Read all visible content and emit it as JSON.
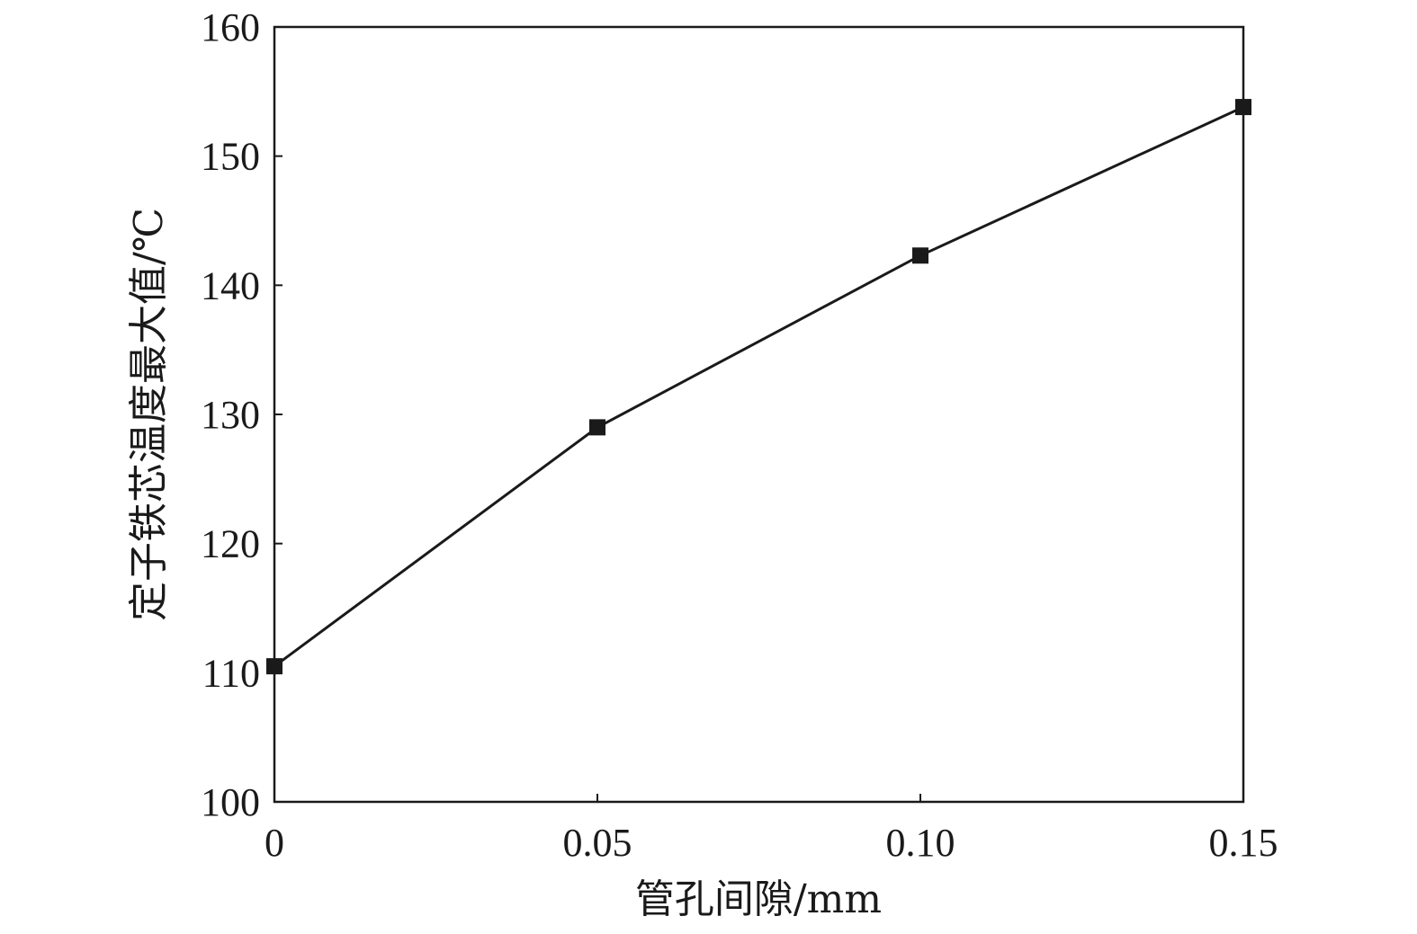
{
  "chart_data": {
    "type": "line",
    "title": "",
    "xlabel": "管孔间隙/mm",
    "ylabel": "定子铁芯温度最大值/℃",
    "x": [
      0,
      0.05,
      0.1,
      0.15
    ],
    "x_tick_labels": [
      "0",
      "0.05",
      "0.10",
      "0.15"
    ],
    "y_ticks": [
      100,
      110,
      120,
      130,
      140,
      150,
      160
    ],
    "y_tick_labels": [
      "100",
      "110",
      "120",
      "130",
      "140",
      "150",
      "160"
    ],
    "xlim": [
      0,
      0.15
    ],
    "ylim": [
      100,
      160
    ],
    "grid": false,
    "marker": "square",
    "color": "#1a1a1a",
    "series": [
      {
        "values": [
          110.5,
          129.0,
          142.3,
          153.8
        ]
      }
    ]
  }
}
